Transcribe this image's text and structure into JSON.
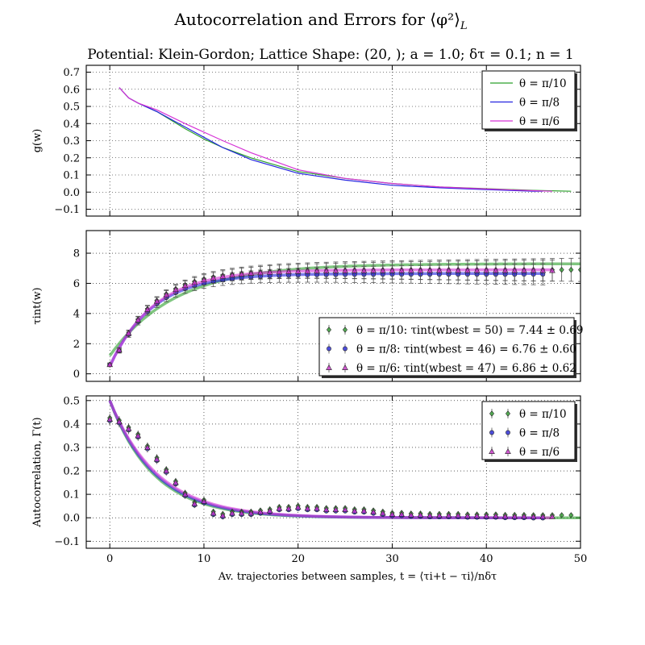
{
  "title": "Autocorrelation and Errors for ⟨φ²⟩",
  "title_subscript": "L",
  "subtitle": "Potential: Klein-Gordon; Lattice Shape: (20, ); a = 1.0; δτ = 0.1; n = 1",
  "colors": {
    "green": "#2ca02c",
    "blue": "#2323e0",
    "magenta": "#d633d6",
    "error_bar": "#555555"
  },
  "chart_data": [
    {
      "type": "line",
      "ylabel": "g(w)",
      "xlim": [
        -2.5,
        50
      ],
      "ylim": [
        -0.14,
        0.74
      ],
      "yticks": [
        -0.1,
        0.0,
        0.1,
        0.2,
        0.3,
        0.4,
        0.5,
        0.6,
        0.7
      ],
      "ytick_labels": [
        "−0.1",
        "0.0",
        "0.1",
        "0.2",
        "0.3",
        "0.4",
        "0.5",
        "0.6",
        "0.7"
      ],
      "grid": true,
      "legend_position": "top-right",
      "series": [
        {
          "name": "θ = π/10",
          "color": "green",
          "x": [
            1,
            2,
            3,
            5,
            8,
            10,
            12,
            15,
            20,
            25,
            30,
            35,
            40,
            45,
            49
          ],
          "y": [
            0.61,
            0.55,
            0.52,
            0.47,
            0.37,
            0.31,
            0.26,
            0.2,
            0.12,
            0.08,
            0.05,
            0.03,
            0.02,
            0.01,
            0.005
          ]
        },
        {
          "name": "θ = π/8",
          "color": "blue",
          "x": [
            1,
            2,
            3,
            5,
            8,
            10,
            12,
            15,
            20,
            25,
            30,
            35,
            40,
            45,
            46
          ],
          "y": [
            0.61,
            0.55,
            0.52,
            0.47,
            0.38,
            0.32,
            0.26,
            0.19,
            0.11,
            0.07,
            0.04,
            0.025,
            0.015,
            0.005,
            0.005
          ]
        },
        {
          "name": "θ = π/6",
          "color": "magenta",
          "x": [
            1,
            2,
            3,
            5,
            8,
            10,
            12,
            15,
            20,
            25,
            30,
            35,
            40,
            45,
            47
          ],
          "y": [
            0.61,
            0.55,
            0.52,
            0.48,
            0.4,
            0.35,
            0.3,
            0.23,
            0.13,
            0.08,
            0.05,
            0.03,
            0.018,
            0.008,
            0.005
          ]
        }
      ]
    },
    {
      "type": "scatter",
      "ylabel": "τint(w)",
      "xlim": [
        -2.5,
        50
      ],
      "ylim": [
        -0.5,
        9.5
      ],
      "yticks": [
        0,
        2,
        4,
        6,
        8
      ],
      "ytick_labels": [
        "0",
        "2",
        "4",
        "6",
        "8"
      ],
      "grid": true,
      "legend_position": "bottom-right",
      "series": [
        {
          "name": "θ = π/10: τint(wbest = 50) = 7.44 ± 0.69",
          "color": "green",
          "marker": "diamond",
          "tau": 6.9,
          "fit_tau": 7.3,
          "fit_y0": 1.2,
          "fit_k": 7.0,
          "err_scale": 0.09,
          "x_max": 50
        },
        {
          "name": "θ = π/8: τint(wbest = 46) = 6.76 ± 0.60",
          "color": "blue",
          "marker": "circle",
          "tau": 6.6,
          "fit_tau": 6.65,
          "fit_y0": 0.5,
          "fit_k": 4.5,
          "err_scale": 0.085,
          "x_max": 46
        },
        {
          "name": "θ = π/6: τint(wbest = 47) = 6.86 ± 0.62",
          "color": "magenta",
          "marker": "triangle",
          "tau": 6.85,
          "fit_tau": 6.9,
          "fit_y0": 0.5,
          "fit_k": 4.7,
          "err_scale": 0.085,
          "x_max": 47
        }
      ]
    },
    {
      "type": "scatter",
      "ylabel": "Autocorrelation, Γ(t)",
      "xlabel": "Av. trajectories between samples, t = ⟨τi+t − τi⟩/nδτ",
      "xlim": [
        -2.5,
        50
      ],
      "ylim": [
        -0.13,
        0.52
      ],
      "xticks": [
        0,
        10,
        20,
        30,
        40,
        50
      ],
      "xtick_labels": [
        "0",
        "10",
        "20",
        "30",
        "40",
        "50"
      ],
      "yticks": [
        -0.1,
        0.0,
        0.1,
        0.2,
        0.3,
        0.4,
        0.5
      ],
      "ytick_labels": [
        "−0.1",
        "0.0",
        "0.1",
        "0.2",
        "0.3",
        "0.4",
        "0.5"
      ],
      "grid": true,
      "legend_position": "top-right",
      "points_x": [
        0,
        1,
        2,
        3,
        4,
        5,
        6,
        7,
        8,
        9,
        10,
        11,
        12,
        13,
        14,
        15,
        16,
        17,
        18,
        19,
        20,
        21,
        22,
        23,
        24,
        25,
        26,
        27,
        28,
        29,
        30,
        31,
        32,
        33,
        34,
        35,
        36,
        37,
        38,
        39,
        40,
        41,
        42,
        43,
        44,
        45,
        46,
        47,
        48,
        49
      ],
      "points_y": [
        0.42,
        0.41,
        0.38,
        0.35,
        0.3,
        0.25,
        0.2,
        0.15,
        0.1,
        0.06,
        0.07,
        0.02,
        0.01,
        0.02,
        0.02,
        0.02,
        0.025,
        0.03,
        0.04,
        0.04,
        0.045,
        0.04,
        0.04,
        0.035,
        0.035,
        0.035,
        0.03,
        0.03,
        0.025,
        0.02,
        0.015,
        0.015,
        0.012,
        0.012,
        0.01,
        0.01,
        0.01,
        0.01,
        0.008,
        0.008,
        0.008,
        0.008,
        0.006,
        0.006,
        0.006,
        0.005,
        0.005,
        0.005,
        0.005,
        0.005
      ],
      "series": [
        {
          "name": "θ = π/10",
          "color": "green",
          "marker": "diamond",
          "fit_tau": 4.7,
          "offset": 0.006,
          "x_max": 50
        },
        {
          "name": "θ = π/8",
          "color": "blue",
          "marker": "circle",
          "fit_tau": 4.9,
          "offset": -0.006,
          "x_max": 46
        },
        {
          "name": "θ = π/6",
          "color": "magenta",
          "marker": "triangle",
          "fit_tau": 5.1,
          "offset": 0.0,
          "x_max": 47
        }
      ]
    }
  ]
}
